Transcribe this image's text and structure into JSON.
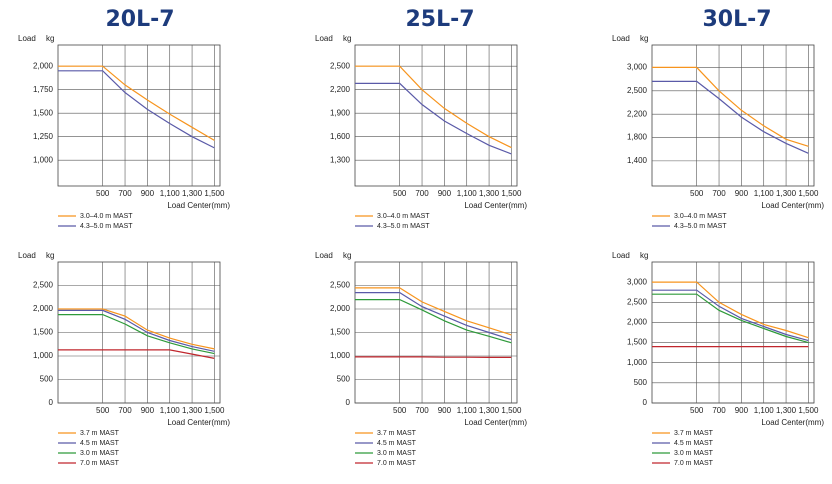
{
  "titles": [
    "20L-7",
    "25L-7",
    "30L-7"
  ],
  "chart_data": [
    {
      "type": "line",
      "y_label": "Load kg",
      "x_label": "Load Center(mm)",
      "grid": true,
      "x": [
        100,
        500,
        700,
        900,
        1100,
        1300,
        1500
      ],
      "xlim": [
        100,
        1550
      ],
      "xticks": [
        500,
        700,
        900,
        {
          "value": 1100,
          "label": "1,100"
        },
        {
          "value": 1300,
          "label": "1,300"
        },
        {
          "value": 1500,
          "label": "1,500"
        }
      ],
      "ylim": [
        725,
        2225
      ],
      "yticks": [
        {
          "value": 2000,
          "label": "2,000"
        },
        {
          "value": 1750,
          "label": "1,750"
        },
        {
          "value": 1500,
          "label": "1,500"
        },
        {
          "value": 1250,
          "label": "1,250"
        },
        {
          "value": 1000,
          "label": "1,000"
        }
      ],
      "series": [
        {
          "name": "3.0–4.0 m MAST",
          "color": "#f7941d",
          "values": [
            2000,
            2000,
            1800,
            1640,
            1490,
            1350,
            1210
          ]
        },
        {
          "name": "4.3–5.0 m MAST",
          "color": "#5a5aa8",
          "values": [
            1950,
            1950,
            1720,
            1540,
            1390,
            1250,
            1130
          ]
        }
      ]
    },
    {
      "type": "line",
      "y_label": "Load kg",
      "x_label": "Load Center(mm)",
      "grid": true,
      "x": [
        100,
        500,
        700,
        900,
        1100,
        1300,
        1500
      ],
      "xlim": [
        100,
        1550
      ],
      "xticks": [
        500,
        700,
        900,
        {
          "value": 1100,
          "label": "1,100"
        },
        {
          "value": 1300,
          "label": "1,300"
        },
        {
          "value": 1500,
          "label": "1,500"
        }
      ],
      "ylim": [
        970,
        2770
      ],
      "yticks": [
        {
          "value": 2500,
          "label": "2,500"
        },
        {
          "value": 2200,
          "label": "2,200"
        },
        {
          "value": 1900,
          "label": "1,900"
        },
        {
          "value": 1600,
          "label": "1,600"
        },
        {
          "value": 1300,
          "label": "1,300"
        }
      ],
      "series": [
        {
          "name": "3.0–4.0 m MAST",
          "color": "#f7941d",
          "values": [
            2500,
            2500,
            2200,
            1960,
            1770,
            1600,
            1460
          ]
        },
        {
          "name": "4.3–5.0 m MAST",
          "color": "#5a5aa8",
          "values": [
            2280,
            2280,
            2010,
            1800,
            1640,
            1490,
            1380
          ]
        }
      ]
    },
    {
      "type": "line",
      "y_label": "Load kg",
      "x_label": "Load Center(mm)",
      "grid": true,
      "x": [
        100,
        500,
        700,
        900,
        1100,
        1300,
        1500
      ],
      "xlim": [
        100,
        1550
      ],
      "xticks": [
        500,
        700,
        900,
        {
          "value": 1100,
          "label": "1,100"
        },
        {
          "value": 1300,
          "label": "1,300"
        },
        {
          "value": 1500,
          "label": "1,500"
        }
      ],
      "ylim": [
        970,
        3480
      ],
      "yticks": [
        {
          "value": 3000,
          "label": "3,000"
        },
        {
          "value": 2500,
          "label": "2,500"
        },
        {
          "value": 2200,
          "label": "2,200"
        },
        {
          "value": 1800,
          "label": "1,800"
        },
        {
          "value": 1400,
          "label": "1,400"
        }
      ],
      "series": [
        {
          "name": "3.0–4.0 m MAST",
          "color": "#f7941d",
          "values": [
            3000,
            3000,
            2500,
            2250,
            2000,
            1770,
            1650
          ]
        },
        {
          "name": "4.3–5.0 m MAST",
          "color": "#5a5aa8",
          "values": [
            2700,
            2700,
            2400,
            2150,
            1900,
            1700,
            1530
          ]
        }
      ]
    },
    {
      "type": "line",
      "y_label": "Load kg",
      "x_label": "Load Center(mm)",
      "grid": true,
      "x": [
        100,
        500,
        700,
        900,
        1100,
        1300,
        1500
      ],
      "xlim": [
        100,
        1550
      ],
      "xticks": [
        500,
        700,
        900,
        {
          "value": 1100,
          "label": "1,100"
        },
        {
          "value": 1300,
          "label": "1,300"
        },
        {
          "value": 1500,
          "label": "1,500"
        }
      ],
      "ylim": [
        0,
        3000
      ],
      "yticks": [
        {
          "value": 2500,
          "label": "2,500"
        },
        {
          "value": 2000,
          "label": "2,000"
        },
        {
          "value": 1500,
          "label": "1,500"
        },
        {
          "value": 1000,
          "label": "1,000"
        },
        500,
        0
      ],
      "series": [
        {
          "name": "3.7 m MAST",
          "color": "#f7941d",
          "values": [
            2000,
            2000,
            1850,
            1550,
            1380,
            1250,
            1150
          ]
        },
        {
          "name": "4.5 m MAST",
          "color": "#5a5aa8",
          "values": [
            1970,
            1970,
            1780,
            1500,
            1330,
            1200,
            1100
          ]
        },
        {
          "name": "3.0 m MAST",
          "color": "#2e9a3a",
          "values": [
            1880,
            1880,
            1680,
            1430,
            1280,
            1150,
            1050
          ]
        },
        {
          "name": "7.0 m MAST",
          "color": "#c0262d",
          "values": [
            1130,
            1130,
            1130,
            1130,
            1130,
            1040,
            950
          ]
        }
      ]
    },
    {
      "type": "line",
      "y_label": "Load kg",
      "x_label": "Load Center(mm)",
      "grid": true,
      "x": [
        100,
        500,
        700,
        900,
        1100,
        1300,
        1500
      ],
      "xlim": [
        100,
        1550
      ],
      "xticks": [
        500,
        700,
        900,
        {
          "value": 1100,
          "label": "1,100"
        },
        {
          "value": 1300,
          "label": "1,300"
        },
        {
          "value": 1500,
          "label": "1,500"
        }
      ],
      "ylim": [
        0,
        3000
      ],
      "yticks": [
        {
          "value": 2500,
          "label": "2,500"
        },
        {
          "value": 2000,
          "label": "2,000"
        },
        {
          "value": 1500,
          "label": "1,500"
        },
        {
          "value": 1000,
          "label": "1,000"
        },
        500,
        0
      ],
      "series": [
        {
          "name": "3.7 m MAST",
          "color": "#f7941d",
          "values": [
            2450,
            2450,
            2150,
            1950,
            1750,
            1600,
            1450
          ]
        },
        {
          "name": "4.5 m MAST",
          "color": "#5a5aa8",
          "values": [
            2350,
            2350,
            2050,
            1850,
            1650,
            1500,
            1350
          ]
        },
        {
          "name": "3.0 m MAST",
          "color": "#2e9a3a",
          "values": [
            2200,
            2200,
            1980,
            1750,
            1550,
            1420,
            1280
          ]
        },
        {
          "name": "7.0 m MAST",
          "color": "#c0262d",
          "values": [
            980,
            980,
            980,
            975,
            975,
            970,
            970
          ]
        }
      ]
    },
    {
      "type": "line",
      "y_label": "Load kg",
      "x_label": "Load Center(mm)",
      "grid": true,
      "x": [
        100,
        500,
        700,
        900,
        1100,
        1300,
        1500
      ],
      "xlim": [
        100,
        1550
      ],
      "xticks": [
        500,
        700,
        900,
        {
          "value": 1100,
          "label": "1,100"
        },
        {
          "value": 1300,
          "label": "1,300"
        },
        {
          "value": 1500,
          "label": "1,500"
        }
      ],
      "ylim": [
        0,
        3500
      ],
      "yticks": [
        {
          "value": 3000,
          "label": "3,000"
        },
        {
          "value": 2500,
          "label": "2,500"
        },
        {
          "value": 2000,
          "label": "2,000"
        },
        {
          "value": 1500,
          "label": "1,500"
        },
        {
          "value": 1000,
          "label": "1,000"
        },
        500,
        0
      ],
      "series": [
        {
          "name": "3.7 m MAST",
          "color": "#f7941d",
          "values": [
            3000,
            3000,
            2500,
            2200,
            1950,
            1800,
            1620
          ]
        },
        {
          "name": "4.5 m MAST",
          "color": "#5a5aa8",
          "values": [
            2800,
            2800,
            2400,
            2100,
            1900,
            1700,
            1550
          ]
        },
        {
          "name": "3.0 m MAST",
          "color": "#2e9a3a",
          "values": [
            2700,
            2700,
            2300,
            2050,
            1850,
            1650,
            1500
          ]
        },
        {
          "name": "7.0 m MAST",
          "color": "#c0262d",
          "values": [
            1400,
            1400,
            1400,
            1400,
            1400,
            1400,
            1400
          ]
        }
      ]
    }
  ]
}
